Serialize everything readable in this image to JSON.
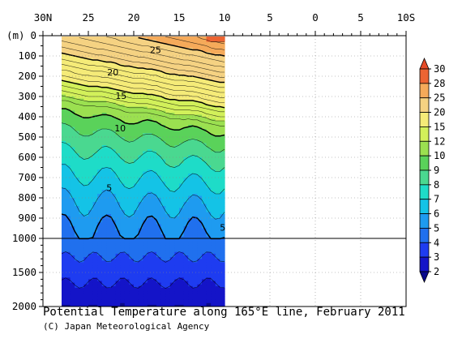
{
  "chart_data": {
    "type": "contour",
    "title": "Potential Temperature along 165°E line, February 2011",
    "credit": "(C) Japan Meteorological Agency",
    "ylabel": "(m)",
    "x_ticks": [
      {
        "value": 30,
        "label": "30N"
      },
      {
        "value": 25,
        "label": "25"
      },
      {
        "value": 20,
        "label": "20"
      },
      {
        "value": 15,
        "label": "15"
      },
      {
        "value": 10,
        "label": "10"
      },
      {
        "value": 5,
        "label": "5"
      },
      {
        "value": 0,
        "label": "0"
      },
      {
        "value": -5,
        "label": "5"
      },
      {
        "value": -10,
        "label": "10S"
      }
    ],
    "xlim": [
      30,
      -10
    ],
    "data_extent_lat": [
      28,
      10
    ],
    "y_upper": {
      "range": [
        0,
        1000
      ],
      "ticks": [
        0,
        100,
        200,
        300,
        400,
        500,
        600,
        700,
        800,
        900,
        1000
      ]
    },
    "y_lower": {
      "range": [
        1000,
        2000
      ],
      "ticks": [
        1500,
        2000
      ]
    },
    "colorbar": {
      "levels": [
        2,
        3,
        4,
        5,
        6,
        7,
        8,
        9,
        10,
        12,
        15,
        20,
        25,
        28,
        30
      ],
      "colors": [
        "#0a0a8c",
        "#1414c8",
        "#1e3cf0",
        "#2070ee",
        "#1e9bf0",
        "#14c3e6",
        "#1edcc8",
        "#4ad890",
        "#5ad25a",
        "#9be050",
        "#d2f05a",
        "#f5eb78",
        "#f5d282",
        "#f5aa5a",
        "#ec6432",
        "#e64b28"
      ]
    },
    "contour_labels": [
      {
        "text": "25",
        "lat": 17.6,
        "depth": 70
      },
      {
        "text": "20",
        "lat": 22.3,
        "depth": 180
      },
      {
        "text": "15",
        "lat": 21.4,
        "depth": 295
      },
      {
        "text": "10",
        "lat": 21.5,
        "depth": 455
      },
      {
        "text": "5",
        "lat": 22.7,
        "depth": 750
      },
      {
        "text": "5",
        "lat": 10.2,
        "depth": 945
      }
    ]
  }
}
